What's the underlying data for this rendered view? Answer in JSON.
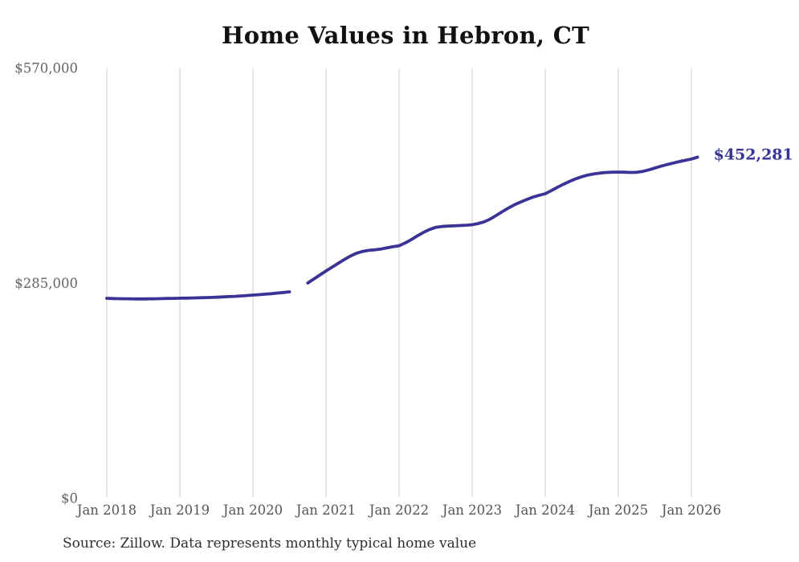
{
  "chart_data": {
    "type": "line",
    "title": "Home Values in Hebron, CT",
    "source_note": "Source: Zillow. Data represents monthly typical home value",
    "end_label": "$452,281",
    "final_value": 452281,
    "ylim": [
      0,
      570000
    ],
    "y_ticks": [
      {
        "label": "$0",
        "value": 0
      },
      {
        "label": "$285,000",
        "value": 285000
      },
      {
        "label": "$570,000",
        "value": 570000
      }
    ],
    "x_ticks": [
      "Jan 2018",
      "Jan 2019",
      "Jan 2020",
      "Jan 2021",
      "Jan 2022",
      "Jan 2023",
      "Jan 2024",
      "Jan 2025",
      "Jan 2026"
    ],
    "grid": "vertical-only",
    "legend": "none",
    "series": [
      {
        "name": "Monthly typical home value",
        "start": "Jan 2018",
        "interval": "monthly",
        "note": "null entries are a visible data gap (Aug-Sep 2020)",
        "values": [
          265300,
          265000,
          264800,
          264600,
          264500,
          264400,
          264400,
          264500,
          264700,
          264900,
          265100,
          265200,
          265400,
          265500,
          265700,
          265900,
          266100,
          266400,
          266700,
          267100,
          267500,
          267900,
          268400,
          268900,
          269500,
          270100,
          270700,
          271400,
          272200,
          273000,
          273800,
          null,
          null,
          285500,
          290900,
          296200,
          301500,
          306500,
          311600,
          316600,
          321200,
          325000,
          327400,
          328800,
          329500,
          330600,
          332100,
          333600,
          335000,
          338600,
          343100,
          348100,
          352600,
          356500,
          359300,
          360400,
          361000,
          361300,
          361700,
          362100,
          362800,
          364400,
          366700,
          370400,
          375200,
          380400,
          385200,
          389400,
          393000,
          396300,
          399400,
          401800,
          403900,
          408000,
          412400,
          416500,
          420200,
          423600,
          426400,
          428600,
          430200,
          431300,
          432000,
          432400,
          432600,
          432300,
          432000,
          432200,
          433400,
          435400,
          437900,
          440300,
          442500,
          444500,
          446400,
          448100,
          449800,
          452281
        ]
      }
    ],
    "colors": {
      "line": "#3a3295",
      "end_label": "#3a3295",
      "grid": "#cccccc",
      "y_tick_text": "#636363",
      "x_tick_text": "#555555",
      "title_text": "#111111",
      "source_text": "#2e2e2e"
    }
  }
}
